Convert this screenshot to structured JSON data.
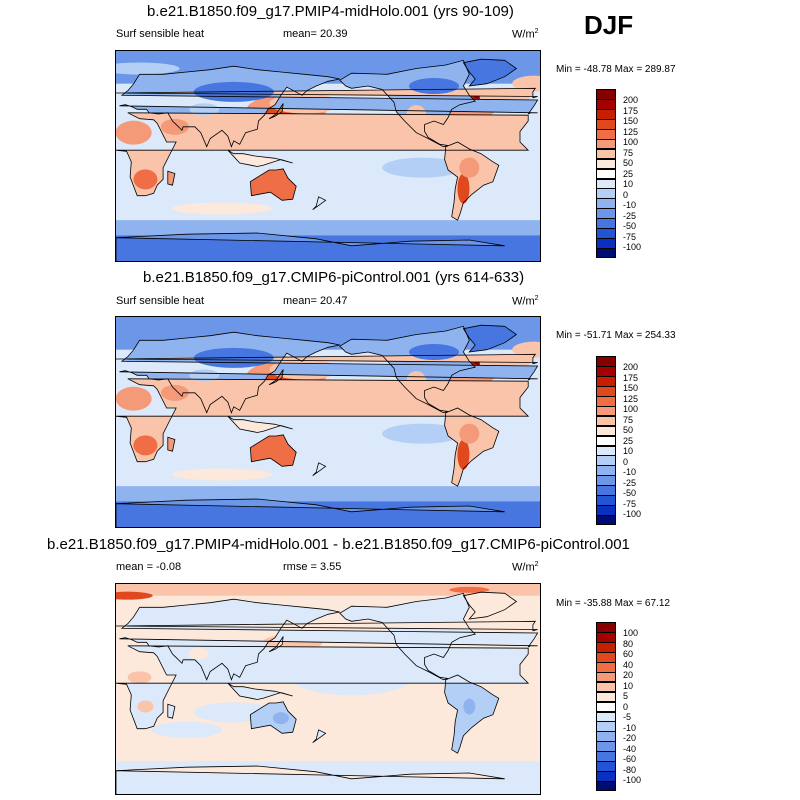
{
  "season": "DJF",
  "palette_full": [
    "#ffffff",
    "#870000",
    "#a50000",
    "#c81e00",
    "#e0481e",
    "#f06e46",
    "#f59a78",
    "#fac4aa",
    "#fde8dc",
    "#dbe9fb",
    "#b4cff5",
    "#8fb3ef",
    "#6c96e8",
    "#4776e0",
    "#2454d6",
    "#0a30bf",
    "#001a99",
    "#000c73"
  ],
  "panels": [
    {
      "title": "b.e21.B1850.f09_g17.PMIP4-midHolo.001 (yrs 90-109)",
      "left_label": "Surf sensible heat",
      "center_label": "mean=  20.39",
      "unit": "W/m",
      "unit_sup": "2",
      "minmax": "Min = -48.78 Max = 289.87",
      "levels": [
        "200",
        "175",
        "150",
        "125",
        "100",
        "75",
        "50",
        "25",
        "10",
        "0",
        "-10",
        "-25",
        "-50",
        "-75",
        "-100"
      ]
    },
    {
      "title": "b.e21.B1850.f09_g17.CMIP6-piControl.001 (yrs 614-633)",
      "left_label": "Surf sensible heat",
      "center_label": "mean=  20.47",
      "unit": "W/m",
      "unit_sup": "2",
      "minmax": "Min = -51.71 Max = 254.33",
      "levels": [
        "200",
        "175",
        "150",
        "125",
        "100",
        "75",
        "50",
        "25",
        "10",
        "0",
        "-10",
        "-25",
        "-50",
        "-75",
        "-100"
      ]
    },
    {
      "title": "b.e21.B1850.f09_g17.PMIP4-midHolo.001 - b.e21.B1850.f09_g17.CMIP6-piControl.001",
      "left_label": "mean =  -0.08",
      "center_label": "rmse =   3.55",
      "unit": "W/m",
      "unit_sup": "2",
      "minmax": "Min = -35.88 Max =  67.12",
      "levels": [
        "100",
        "80",
        "60",
        "40",
        "20",
        "10",
        "5",
        "0",
        "-5",
        "-10",
        "-20",
        "-40",
        "-60",
        "-80",
        "-100"
      ]
    }
  ]
}
